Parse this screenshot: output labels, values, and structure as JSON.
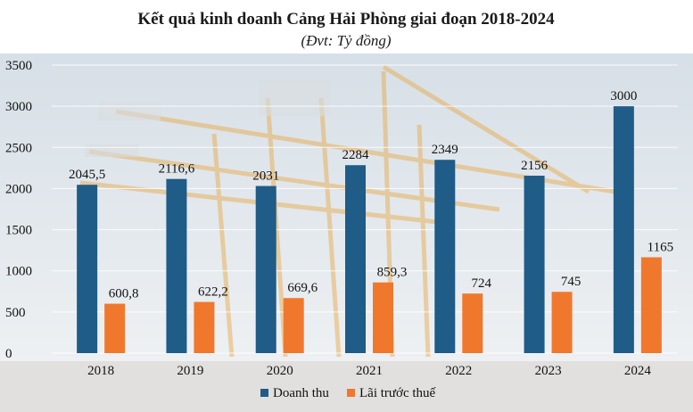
{
  "chart_data": {
    "type": "bar",
    "title": "Kết quả kinh doanh Cảng Hải Phòng giai đoạn 2018-2024",
    "subtitle": "(Đvt: Tỷ đồng)",
    "categories": [
      "2018",
      "2019",
      "2020",
      "2021",
      "2022",
      "2023",
      "2024"
    ],
    "series": [
      {
        "name": "Doanh thu",
        "color": "#1f5c87",
        "values": [
          2045.5,
          2116.6,
          2031,
          2284,
          2349,
          2156,
          3000
        ],
        "labels": [
          "2045,5",
          "2116,6",
          "2031",
          "2284",
          "2349",
          "2156",
          "3000"
        ]
      },
      {
        "name": "Lãi trước thuế",
        "color": "#f0782d",
        "values": [
          600.8,
          622.2,
          669.6,
          859.3,
          724,
          745,
          1165
        ],
        "labels": [
          "600,8",
          "622,2",
          "669,6",
          "859,3",
          "724",
          "745",
          "1165"
        ]
      }
    ],
    "ylim": [
      0,
      3500
    ],
    "yticks": [
      0,
      500,
      1000,
      1500,
      2000,
      2500,
      3000,
      3500
    ],
    "grid": true,
    "legend": "bottom-center"
  }
}
